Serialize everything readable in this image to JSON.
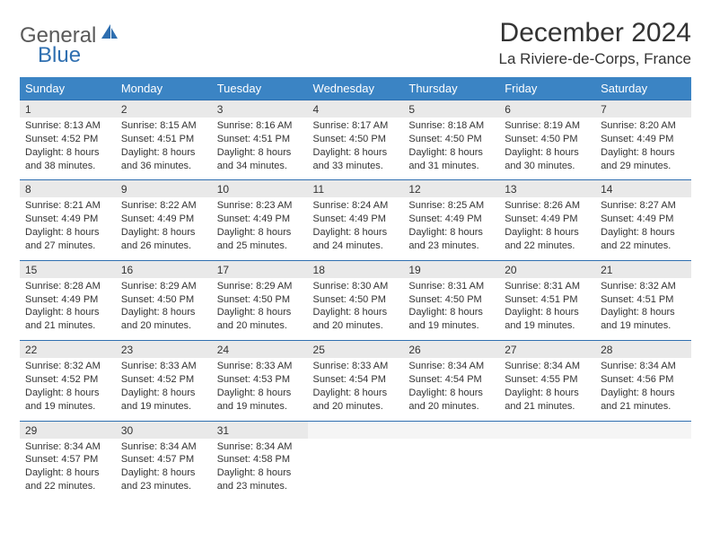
{
  "logo": {
    "general": "General",
    "blue": "Blue"
  },
  "title": "December 2024",
  "location": "La Riviere-de-Corps, France",
  "colors": {
    "header_bg": "#3b84c4",
    "row_border": "#2f6fb0",
    "daynum_bg": "#e9e9e9",
    "text": "#333333",
    "logo_gray": "#5a5a5a",
    "logo_blue": "#2f6fb0"
  },
  "weekdays": [
    "Sunday",
    "Monday",
    "Tuesday",
    "Wednesday",
    "Thursday",
    "Friday",
    "Saturday"
  ],
  "weeks": [
    [
      {
        "n": "1",
        "sunrise": "Sunrise: 8:13 AM",
        "sunset": "Sunset: 4:52 PM",
        "day": "Daylight: 8 hours and 38 minutes."
      },
      {
        "n": "2",
        "sunrise": "Sunrise: 8:15 AM",
        "sunset": "Sunset: 4:51 PM",
        "day": "Daylight: 8 hours and 36 minutes."
      },
      {
        "n": "3",
        "sunrise": "Sunrise: 8:16 AM",
        "sunset": "Sunset: 4:51 PM",
        "day": "Daylight: 8 hours and 34 minutes."
      },
      {
        "n": "4",
        "sunrise": "Sunrise: 8:17 AM",
        "sunset": "Sunset: 4:50 PM",
        "day": "Daylight: 8 hours and 33 minutes."
      },
      {
        "n": "5",
        "sunrise": "Sunrise: 8:18 AM",
        "sunset": "Sunset: 4:50 PM",
        "day": "Daylight: 8 hours and 31 minutes."
      },
      {
        "n": "6",
        "sunrise": "Sunrise: 8:19 AM",
        "sunset": "Sunset: 4:50 PM",
        "day": "Daylight: 8 hours and 30 minutes."
      },
      {
        "n": "7",
        "sunrise": "Sunrise: 8:20 AM",
        "sunset": "Sunset: 4:49 PM",
        "day": "Daylight: 8 hours and 29 minutes."
      }
    ],
    [
      {
        "n": "8",
        "sunrise": "Sunrise: 8:21 AM",
        "sunset": "Sunset: 4:49 PM",
        "day": "Daylight: 8 hours and 27 minutes."
      },
      {
        "n": "9",
        "sunrise": "Sunrise: 8:22 AM",
        "sunset": "Sunset: 4:49 PM",
        "day": "Daylight: 8 hours and 26 minutes."
      },
      {
        "n": "10",
        "sunrise": "Sunrise: 8:23 AM",
        "sunset": "Sunset: 4:49 PM",
        "day": "Daylight: 8 hours and 25 minutes."
      },
      {
        "n": "11",
        "sunrise": "Sunrise: 8:24 AM",
        "sunset": "Sunset: 4:49 PM",
        "day": "Daylight: 8 hours and 24 minutes."
      },
      {
        "n": "12",
        "sunrise": "Sunrise: 8:25 AM",
        "sunset": "Sunset: 4:49 PM",
        "day": "Daylight: 8 hours and 23 minutes."
      },
      {
        "n": "13",
        "sunrise": "Sunrise: 8:26 AM",
        "sunset": "Sunset: 4:49 PM",
        "day": "Daylight: 8 hours and 22 minutes."
      },
      {
        "n": "14",
        "sunrise": "Sunrise: 8:27 AM",
        "sunset": "Sunset: 4:49 PM",
        "day": "Daylight: 8 hours and 22 minutes."
      }
    ],
    [
      {
        "n": "15",
        "sunrise": "Sunrise: 8:28 AM",
        "sunset": "Sunset: 4:49 PM",
        "day": "Daylight: 8 hours and 21 minutes."
      },
      {
        "n": "16",
        "sunrise": "Sunrise: 8:29 AM",
        "sunset": "Sunset: 4:50 PM",
        "day": "Daylight: 8 hours and 20 minutes."
      },
      {
        "n": "17",
        "sunrise": "Sunrise: 8:29 AM",
        "sunset": "Sunset: 4:50 PM",
        "day": "Daylight: 8 hours and 20 minutes."
      },
      {
        "n": "18",
        "sunrise": "Sunrise: 8:30 AM",
        "sunset": "Sunset: 4:50 PM",
        "day": "Daylight: 8 hours and 20 minutes."
      },
      {
        "n": "19",
        "sunrise": "Sunrise: 8:31 AM",
        "sunset": "Sunset: 4:50 PM",
        "day": "Daylight: 8 hours and 19 minutes."
      },
      {
        "n": "20",
        "sunrise": "Sunrise: 8:31 AM",
        "sunset": "Sunset: 4:51 PM",
        "day": "Daylight: 8 hours and 19 minutes."
      },
      {
        "n": "21",
        "sunrise": "Sunrise: 8:32 AM",
        "sunset": "Sunset: 4:51 PM",
        "day": "Daylight: 8 hours and 19 minutes."
      }
    ],
    [
      {
        "n": "22",
        "sunrise": "Sunrise: 8:32 AM",
        "sunset": "Sunset: 4:52 PM",
        "day": "Daylight: 8 hours and 19 minutes."
      },
      {
        "n": "23",
        "sunrise": "Sunrise: 8:33 AM",
        "sunset": "Sunset: 4:52 PM",
        "day": "Daylight: 8 hours and 19 minutes."
      },
      {
        "n": "24",
        "sunrise": "Sunrise: 8:33 AM",
        "sunset": "Sunset: 4:53 PM",
        "day": "Daylight: 8 hours and 19 minutes."
      },
      {
        "n": "25",
        "sunrise": "Sunrise: 8:33 AM",
        "sunset": "Sunset: 4:54 PM",
        "day": "Daylight: 8 hours and 20 minutes."
      },
      {
        "n": "26",
        "sunrise": "Sunrise: 8:34 AM",
        "sunset": "Sunset: 4:54 PM",
        "day": "Daylight: 8 hours and 20 minutes."
      },
      {
        "n": "27",
        "sunrise": "Sunrise: 8:34 AM",
        "sunset": "Sunset: 4:55 PM",
        "day": "Daylight: 8 hours and 21 minutes."
      },
      {
        "n": "28",
        "sunrise": "Sunrise: 8:34 AM",
        "sunset": "Sunset: 4:56 PM",
        "day": "Daylight: 8 hours and 21 minutes."
      }
    ],
    [
      {
        "n": "29",
        "sunrise": "Sunrise: 8:34 AM",
        "sunset": "Sunset: 4:57 PM",
        "day": "Daylight: 8 hours and 22 minutes."
      },
      {
        "n": "30",
        "sunrise": "Sunrise: 8:34 AM",
        "sunset": "Sunset: 4:57 PM",
        "day": "Daylight: 8 hours and 23 minutes."
      },
      {
        "n": "31",
        "sunrise": "Sunrise: 8:34 AM",
        "sunset": "Sunset: 4:58 PM",
        "day": "Daylight: 8 hours and 23 minutes."
      },
      null,
      null,
      null,
      null
    ]
  ]
}
